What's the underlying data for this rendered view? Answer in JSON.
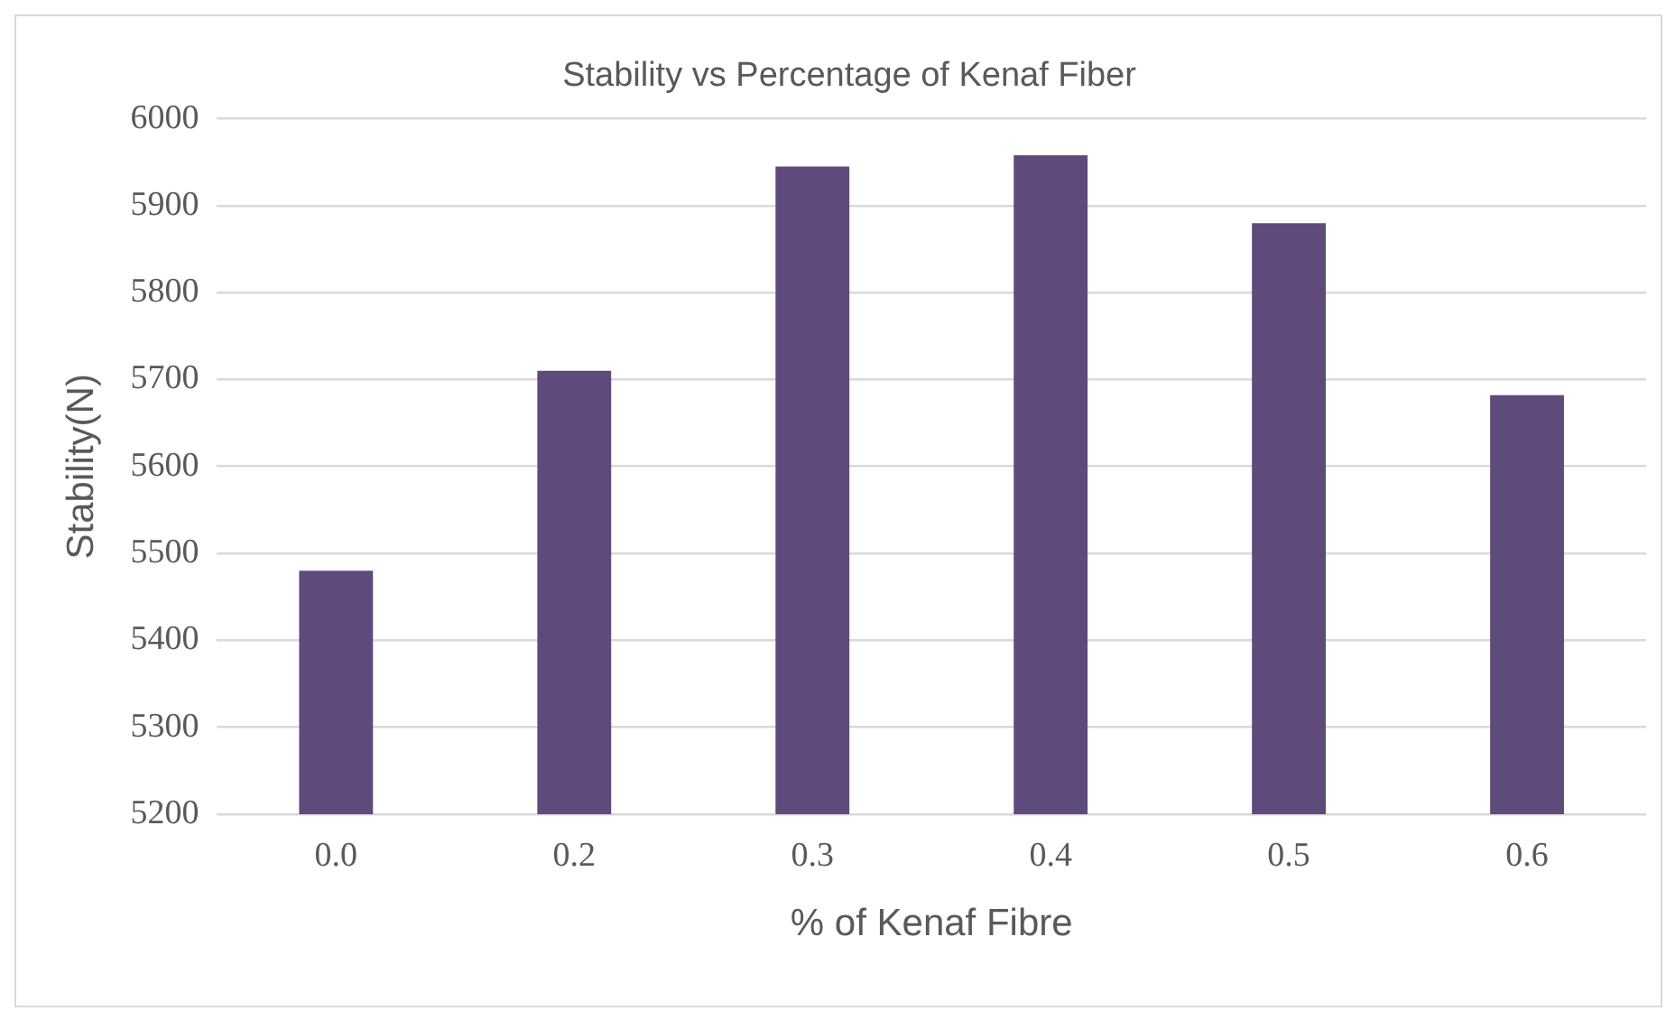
{
  "chart_data": {
    "type": "bar",
    "title": "Stability vs Percentage of Kenaf Fiber",
    "xlabel": "% of Kenaf Fibre",
    "ylabel": "Stability(N)",
    "categories": [
      "0.0",
      "0.2",
      "0.3",
      "0.4",
      "0.5",
      "0.6"
    ],
    "values": [
      5480,
      5710,
      5945,
      5958,
      5880,
      5682
    ],
    "color": "#5e4a7b",
    "ylim": [
      5200,
      6000
    ],
    "yticks": [
      5200,
      5300,
      5400,
      5500,
      5600,
      5700,
      5800,
      5900,
      6000
    ],
    "grid": "y"
  }
}
